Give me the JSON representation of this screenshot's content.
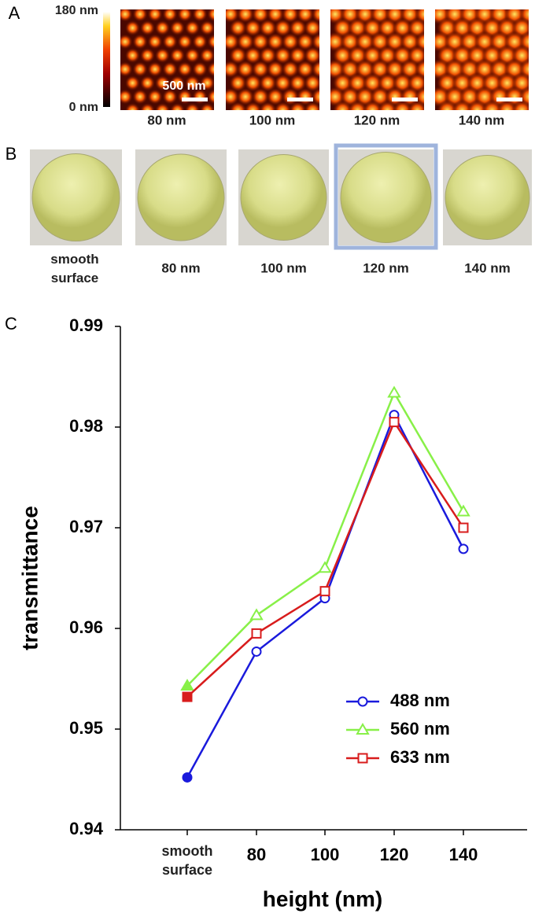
{
  "panel_labels": [
    "A",
    "B",
    "C"
  ],
  "panel_a": {
    "colorbar_max": "180 nm",
    "colorbar_min": "0 nm",
    "scale_bar": "500 nm",
    "captions": [
      "80 nm",
      "100 nm",
      "120 nm",
      "140 nm"
    ]
  },
  "panel_b": {
    "captions": [
      "smooth surface",
      "80 nm",
      "100 nm",
      "120 nm",
      "140 nm"
    ]
  },
  "chart_data": {
    "type": "line",
    "categories": [
      "smooth surface",
      "80",
      "100",
      "120",
      "140"
    ],
    "series": [
      {
        "name": "488 nm",
        "color": "#1a1adc",
        "marker": "circle",
        "values": [
          0.9452,
          0.9577,
          0.963,
          0.9812,
          0.9679
        ]
      },
      {
        "name": "560 nm",
        "color": "#88f048",
        "marker": "triangle",
        "values": [
          0.9543,
          0.9613,
          0.966,
          0.9834,
          0.9716
        ]
      },
      {
        "name": "633 nm",
        "color": "#d81c1c",
        "marker": "square",
        "values": [
          0.9532,
          0.9595,
          0.9637,
          0.9805,
          0.97
        ]
      }
    ],
    "ylim": [
      0.94,
      0.99
    ],
    "yticks": [
      0.94,
      0.95,
      0.96,
      0.97,
      0.98,
      0.99
    ],
    "xlabel": "height (nm)",
    "ylabel": "transmittance",
    "grid": false,
    "legend": "lower right"
  }
}
